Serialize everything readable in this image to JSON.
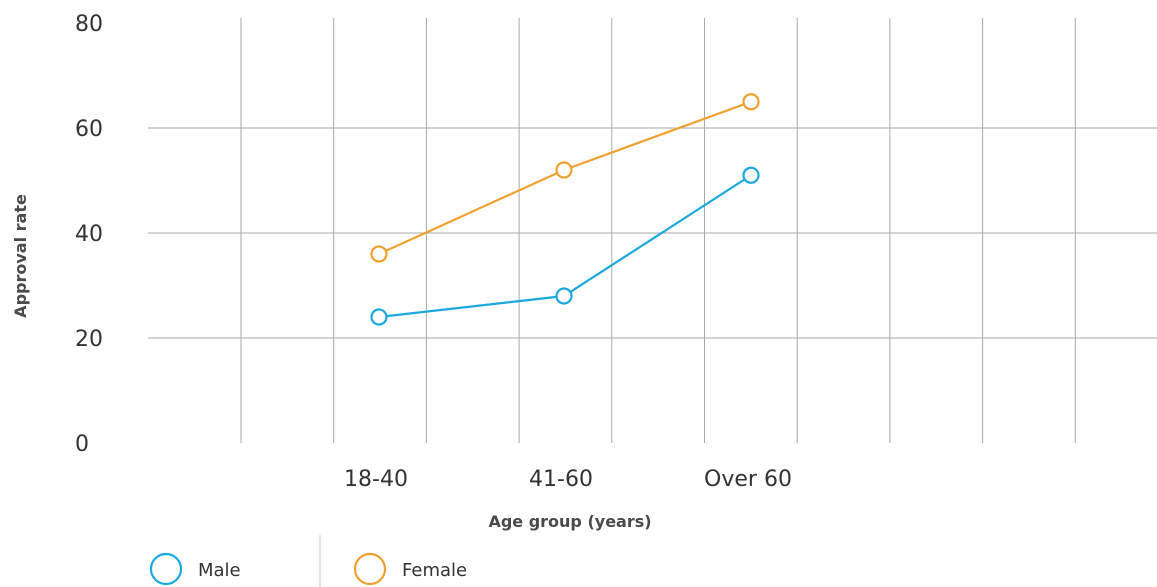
{
  "chart_data": {
    "type": "line",
    "title": "",
    "xlabel": "Age group (years)",
    "ylabel": "Approval rate",
    "categories": [
      "18-40",
      "41-60",
      "Over 60"
    ],
    "ylim": [
      0,
      80
    ],
    "yticks": [
      "0",
      "20",
      "40",
      "60",
      "80"
    ],
    "grid": true,
    "legend_position": "bottom-left",
    "series": [
      {
        "name": "Male",
        "color": "#1ba8e0",
        "values": [
          24,
          28,
          51
        ]
      },
      {
        "name": "Female",
        "color": "#f0a030",
        "values": [
          36,
          52,
          65
        ]
      }
    ]
  }
}
